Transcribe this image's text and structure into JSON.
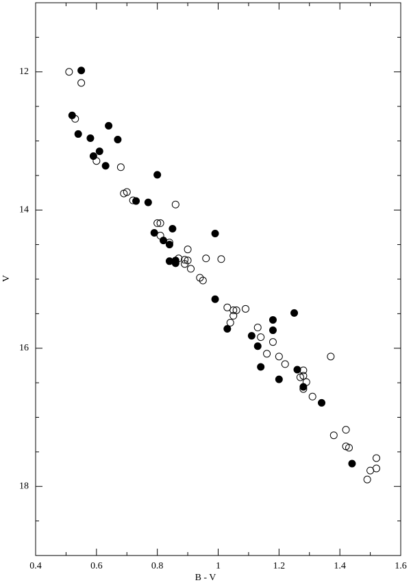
{
  "chart_data": {
    "type": "scatter",
    "xlabel": "B - V",
    "ylabel": "V",
    "xlim": [
      0.4,
      1.6
    ],
    "ylim": [
      19,
      11
    ],
    "xticks": [
      0.4,
      0.6,
      0.8,
      1,
      1.2,
      1.4,
      1.6
    ],
    "x_minor_ticks": [
      0.5,
      0.7,
      0.9,
      1.1,
      1.3,
      1.5
    ],
    "yticks": [
      12,
      14,
      16,
      18
    ],
    "y_minor_ticks": [
      11,
      11.5,
      12.5,
      13,
      13.5,
      14.5,
      15,
      15.5,
      16.5,
      17,
      17.5,
      18.5,
      19
    ],
    "series": [
      {
        "color": "#000000",
        "filled": false,
        "x": [
          0.51,
          0.55,
          0.53,
          0.6,
          0.68,
          0.69,
          0.7,
          0.72,
          0.86,
          0.8,
          0.81,
          0.81,
          0.84,
          0.9,
          0.87,
          0.89,
          0.9,
          0.89,
          0.91,
          0.96,
          1.01,
          0.94,
          0.95,
          1.03,
          1.09,
          1.05,
          1.06,
          1.05,
          1.04,
          1.13,
          1.14,
          1.18,
          1.16,
          1.2,
          1.37,
          1.22,
          1.28,
          1.27,
          1.28,
          1.29,
          1.28,
          1.31,
          1.38,
          1.42,
          1.42,
          1.43,
          1.52,
          1.5,
          1.52,
          1.49
        ],
        "values": [
          12.0,
          12.16,
          12.68,
          13.29,
          13.38,
          13.76,
          13.74,
          13.86,
          13.92,
          14.19,
          14.19,
          14.37,
          14.47,
          14.57,
          14.7,
          14.72,
          14.73,
          14.78,
          14.85,
          14.7,
          14.71,
          14.98,
          15.02,
          15.41,
          15.43,
          15.45,
          15.45,
          15.53,
          15.63,
          15.7,
          15.84,
          15.91,
          16.08,
          16.12,
          16.12,
          16.23,
          16.32,
          16.42,
          16.4,
          16.49,
          16.59,
          16.7,
          17.26,
          17.18,
          17.42,
          17.44,
          17.59,
          17.77,
          17.74,
          17.9
        ]
      },
      {
        "color": "#000000",
        "filled": true,
        "x": [
          0.55,
          0.52,
          0.54,
          0.58,
          0.64,
          0.67,
          0.61,
          0.59,
          0.63,
          0.8,
          0.73,
          0.77,
          0.85,
          0.99,
          0.79,
          0.82,
          0.84,
          0.84,
          0.86,
          0.86,
          0.99,
          1.25,
          1.18,
          1.18,
          1.03,
          1.11,
          1.13,
          1.14,
          1.2,
          1.26,
          1.28,
          1.34,
          1.44
        ],
        "values": [
          11.98,
          12.63,
          12.9,
          12.96,
          12.78,
          12.98,
          13.15,
          13.22,
          13.36,
          13.49,
          13.87,
          13.89,
          14.27,
          14.34,
          14.33,
          14.44,
          14.5,
          14.74,
          14.73,
          14.77,
          15.29,
          15.49,
          15.59,
          15.74,
          15.72,
          15.82,
          15.97,
          16.27,
          16.45,
          16.31,
          16.56,
          16.79,
          17.67
        ]
      }
    ]
  }
}
